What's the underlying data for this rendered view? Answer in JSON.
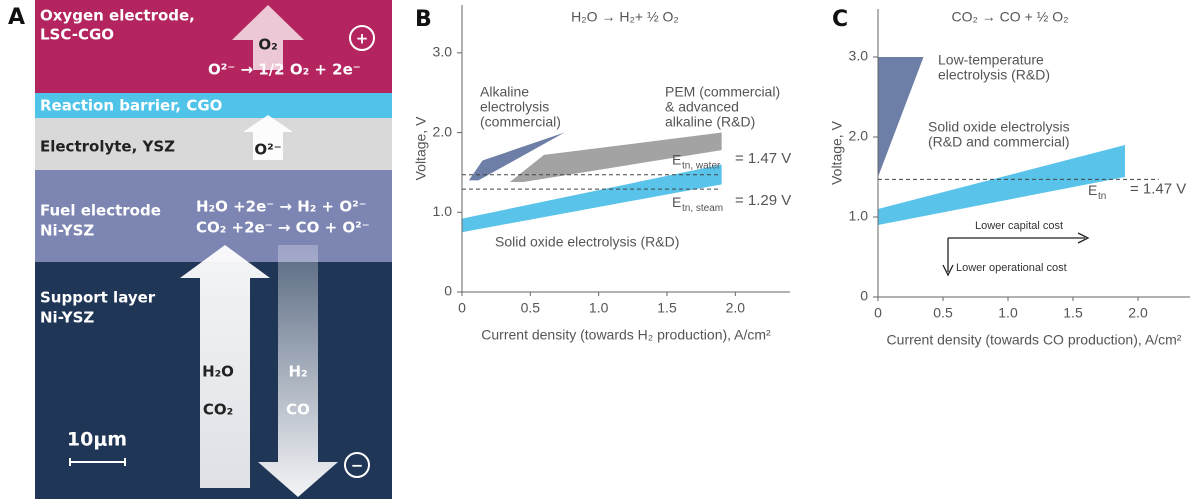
{
  "panel_a": {
    "label": "A",
    "oxygen_electrode": [
      "Oxygen electrode,",
      "LSC-CGO"
    ],
    "o2": "O₂",
    "plus": "+",
    "oxygen_reaction": "O²⁻ → 1/2 O₂ + 2e⁻",
    "reaction_barrier": "Reaction barrier, CGO",
    "electrolyte": "Electrolyte, YSZ",
    "oxide_ion": "O²⁻",
    "fuel_electrode": [
      "Fuel electrode",
      "Ni-YSZ"
    ],
    "fuel_reactions": [
      "H₂O +2e⁻ → H₂ + O²⁻",
      "CO₂ +2e⁻ → CO + O²⁻"
    ],
    "support_layer": [
      "Support layer",
      "Ni-YSZ"
    ],
    "inputs": [
      "H₂O",
      "CO₂"
    ],
    "outputs": [
      "H₂",
      "CO"
    ],
    "scale_bar": "10μm",
    "minus": "−"
  },
  "chart_data": [
    {
      "type": "area",
      "label": "B",
      "title": "H₂O → H₂+ ½ O₂",
      "xlabel": "Current density (towards H₂ production), A/cm²",
      "ylabel": "Voltage, V",
      "xlim": [
        0,
        2.4
      ],
      "ylim": [
        0,
        3.6
      ],
      "xticks": [
        0,
        0.5,
        {
          "value": 1,
          "label": "1.0"
        },
        1.5,
        {
          "value": 2,
          "label": "2.0"
        }
      ],
      "yticks": [
        0,
        {
          "value": 1,
          "label": "1.0"
        },
        {
          "value": 2,
          "label": "2.0"
        },
        {
          "value": 3,
          "label": "3.0"
        }
      ],
      "series": [
        {
          "name": [
            "Alkaline",
            "electrolysis",
            "(commercial)"
          ],
          "color": "#6d7fa6",
          "x": [
            0.05,
            0.15,
            0.75,
            0.12
          ],
          "y": [
            1.4,
            1.65,
            2.0,
            1.4
          ]
        },
        {
          "name": [
            "PEM (commercial)",
            "& advanced",
            "alkaline (R&D)"
          ],
          "color": "#a3a3a3",
          "x": [
            0.35,
            0.6,
            1.9,
            1.9,
            0.45
          ],
          "y": [
            1.38,
            1.72,
            2.0,
            1.78,
            1.38
          ]
        },
        {
          "name": [
            "Solid oxide electrolysis (R&D)"
          ],
          "color": "#5ac3ea",
          "x": [
            0,
            0,
            1.9,
            1.9
          ],
          "y": [
            0.75,
            0.92,
            1.6,
            1.35
          ]
        }
      ],
      "reference_lines": [
        {
          "value": 1.47,
          "label": "E",
          "subscript": "tn, water",
          "value_label": "= 1.47 V"
        },
        {
          "value": 1.29,
          "label": "E",
          "subscript": "tn, steam",
          "value_label": "= 1.29 V"
        }
      ]
    },
    {
      "type": "area",
      "label": "C",
      "title": "CO₂ → CO + ½ O₂",
      "xlabel": "Current density (towards CO production), A/cm²",
      "ylabel": "Voltage, V",
      "xlim": [
        0,
        2.4
      ],
      "ylim": [
        0,
        3.6
      ],
      "xticks": [
        0,
        0.5,
        {
          "value": 1,
          "label": "1.0"
        },
        1.5,
        {
          "value": 2,
          "label": "2.0"
        }
      ],
      "yticks": [
        0,
        {
          "value": 1,
          "label": "1.0"
        },
        {
          "value": 2,
          "label": "2.0"
        },
        {
          "value": 3,
          "label": "3.0"
        }
      ],
      "series": [
        {
          "name": [
            "Low-temperature",
            "electrolysis (R&D)"
          ],
          "color": "#6d7fa6",
          "x": [
            0,
            0,
            0.35
          ],
          "y": [
            1.5,
            3.0,
            3.0
          ]
        },
        {
          "name": [
            "Solid oxide electrolysis",
            "(R&D and commercial)"
          ],
          "color": "#5ac3ea",
          "x": [
            0,
            0,
            1.9,
            1.9
          ],
          "y": [
            0.9,
            1.1,
            1.9,
            1.5
          ]
        }
      ],
      "reference_lines": [
        {
          "value": 1.47,
          "label": "E",
          "subscript": "tn",
          "value_label": "= 1.47 V"
        }
      ],
      "annotations": [
        "Lower capital cost",
        "Lower operational cost"
      ]
    }
  ]
}
